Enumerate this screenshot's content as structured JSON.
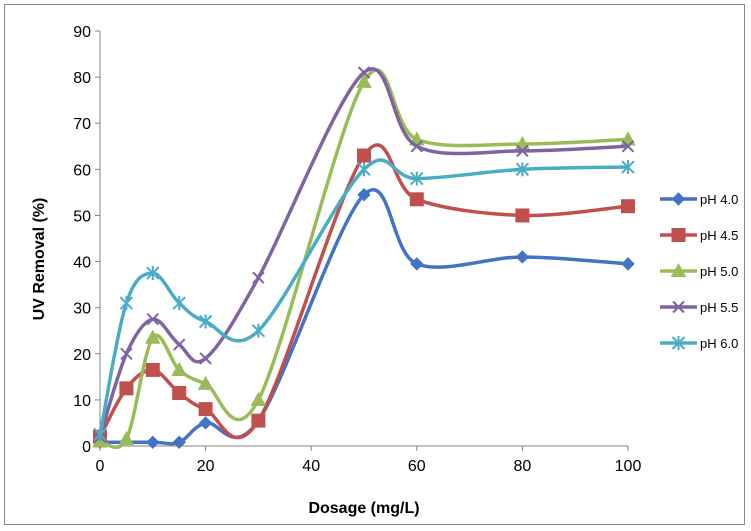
{
  "chart_data": {
    "type": "line",
    "title": "",
    "xlabel": "Dosage (mg/L)",
    "ylabel": "UV Removal (%)",
    "xlim": [
      0,
      100
    ],
    "ylim": [
      0,
      90
    ],
    "x_ticks": [
      0,
      20,
      40,
      60,
      80,
      100
    ],
    "y_ticks": [
      0,
      10,
      20,
      30,
      40,
      50,
      60,
      70,
      80,
      90
    ],
    "grid": false,
    "legend_position": "right",
    "smooth": true,
    "series": [
      {
        "name": "pH 4.0",
        "color": "#4472C4",
        "marker": "diamond",
        "x": [
          0,
          10,
          15,
          20,
          30,
          50,
          60,
          80,
          100
        ],
        "values": [
          0.8,
          0.8,
          0.8,
          5,
          5.5,
          54.5,
          39.5,
          41,
          39.5
        ]
      },
      {
        "name": "pH 4.5",
        "color": "#C0504D",
        "marker": "square",
        "x": [
          0,
          5,
          10,
          15,
          20,
          30,
          50,
          60,
          80,
          100
        ],
        "values": [
          2,
          12.5,
          16.5,
          11.5,
          8,
          5.5,
          63,
          53.5,
          50,
          52
        ]
      },
      {
        "name": "pH 5.0",
        "color": "#9BBB59",
        "marker": "triangle",
        "x": [
          0,
          5,
          10,
          15,
          20,
          30,
          50,
          60,
          80,
          100
        ],
        "values": [
          1,
          1.5,
          23.5,
          16.5,
          13.5,
          10,
          79,
          66.5,
          65.5,
          66.5
        ]
      },
      {
        "name": "pH 5.5",
        "color": "#8064A2",
        "marker": "x",
        "x": [
          0,
          5,
          10,
          15,
          20,
          30,
          50,
          60,
          80,
          100
        ],
        "values": [
          2,
          20,
          27.5,
          22,
          19,
          36.5,
          81,
          65,
          64,
          65
        ]
      },
      {
        "name": "pH 6.0",
        "color": "#4BACC6",
        "marker": "asterisk",
        "x": [
          0,
          5,
          10,
          15,
          20,
          30,
          50,
          60,
          80,
          100
        ],
        "values": [
          2.5,
          31,
          37.5,
          31,
          27,
          25,
          60,
          58,
          60,
          60.5
        ]
      }
    ]
  }
}
